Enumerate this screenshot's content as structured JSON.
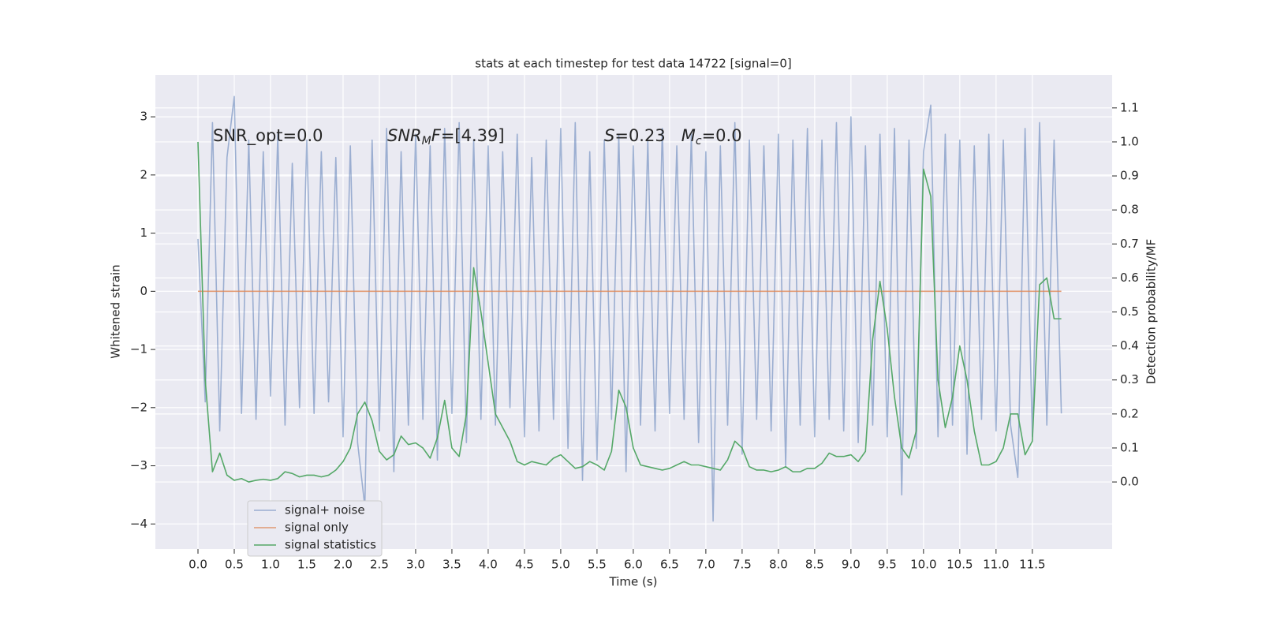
{
  "chart_data": {
    "type": "line",
    "title": "stats at each timestep for test data 14722 [signal=0]",
    "xlabel": "Time (s)",
    "ylabel": "Whitened strain",
    "y2label": "Detection probability/MF",
    "annotations": [
      {
        "parts": [
          {
            "text": "SNR_opt=0.0"
          }
        ]
      },
      {
        "parts": [
          {
            "text": "SNR",
            "italic": true
          },
          {
            "text": "M",
            "italic": true,
            "sub": true
          },
          {
            "text": "F",
            "italic": true
          },
          {
            "text": "=[4.39]"
          }
        ]
      },
      {
        "parts": [
          {
            "text": "S",
            "italic": true
          },
          {
            "text": "=0.23   "
          },
          {
            "text": "M",
            "italic": true
          },
          {
            "text": "c",
            "italic": true,
            "sub": true
          },
          {
            "text": "=0.0"
          }
        ]
      }
    ],
    "x": [
      0,
      0.1,
      0.2,
      0.3,
      0.4,
      0.5,
      0.6,
      0.7,
      0.8,
      0.9,
      1.0,
      1.1,
      1.2,
      1.3,
      1.4,
      1.5,
      1.6,
      1.7,
      1.8,
      1.9,
      2.0,
      2.1,
      2.2,
      2.3,
      2.4,
      2.5,
      2.6,
      2.7,
      2.8,
      2.9,
      3.0,
      3.1,
      3.2,
      3.3,
      3.4,
      3.5,
      3.6,
      3.7,
      3.8,
      3.9,
      4.0,
      4.1,
      4.2,
      4.3,
      4.4,
      4.5,
      4.6,
      4.7,
      4.8,
      4.9,
      5.0,
      5.1,
      5.2,
      5.3,
      5.4,
      5.5,
      5.6,
      5.7,
      5.8,
      5.9,
      6.0,
      6.1,
      6.2,
      6.3,
      6.4,
      6.5,
      6.6,
      6.7,
      6.8,
      6.9,
      7.0,
      7.1,
      7.2,
      7.3,
      7.4,
      7.5,
      7.6,
      7.7,
      7.8,
      7.9,
      8.0,
      8.1,
      8.2,
      8.3,
      8.4,
      8.5,
      8.6,
      8.7,
      8.8,
      8.9,
      9.0,
      9.1,
      9.2,
      9.3,
      9.4,
      9.5,
      9.6,
      9.7,
      9.8,
      9.9,
      10.0,
      10.1,
      10.2,
      10.3,
      10.4,
      10.5,
      10.6,
      10.7,
      10.8,
      10.9,
      11.0,
      11.1,
      11.2,
      11.3,
      11.4,
      11.5,
      11.6,
      11.7,
      11.8,
      11.9
    ],
    "series": [
      {
        "name": "signal+ noise",
        "color": "#4c72b0",
        "opacity": 0.5,
        "axis": "y",
        "values": [
          0.9,
          -1.9,
          2.9,
          -2.4,
          2.3,
          3.35,
          -2.1,
          2.6,
          -2.2,
          2.4,
          -1.8,
          2.7,
          -2.3,
          2.2,
          -2.0,
          2.6,
          -2.1,
          2.4,
          -1.9,
          2.3,
          -2.5,
          2.5,
          -2.6,
          -3.7,
          2.6,
          -2.4,
          2.8,
          -3.1,
          2.4,
          -2.3,
          2.7,
          -2.2,
          2.5,
          -2.9,
          2.8,
          -2.1,
          2.9,
          -2.6,
          2.6,
          -2.2,
          2.5,
          -2.3,
          2.4,
          -2.0,
          2.7,
          -2.5,
          2.3,
          -2.4,
          2.6,
          -2.2,
          2.8,
          -2.7,
          2.9,
          -3.25,
          2.4,
          -2.9,
          2.6,
          -2.2,
          2.7,
          -3.1,
          2.5,
          -2.3,
          2.6,
          -2.4,
          2.8,
          -2.1,
          2.5,
          -2.2,
          2.7,
          -2.6,
          2.4,
          -3.95,
          2.5,
          -2.3,
          2.9,
          -2.8,
          2.6,
          -2.2,
          2.5,
          -2.4,
          2.7,
          -3.0,
          2.6,
          -2.3,
          2.8,
          -2.5,
          2.6,
          -2.2,
          2.9,
          -2.4,
          3.0,
          -2.6,
          2.5,
          -2.3,
          2.7,
          -2.5,
          2.8,
          -3.5,
          2.6,
          -2.7,
          2.4,
          3.2,
          -2.5,
          2.7,
          -2.3,
          2.6,
          -2.8,
          2.5,
          -2.2,
          2.7,
          -2.4,
          2.6,
          -2.3,
          -3.2,
          2.8,
          -2.5,
          2.9,
          -2.3,
          2.6,
          -2.1
        ]
      },
      {
        "name": "signal only",
        "color": "#dd8452",
        "opacity": 0.8,
        "axis": "y",
        "values": [
          0,
          0,
          0,
          0,
          0,
          0,
          0,
          0,
          0,
          0,
          0,
          0,
          0,
          0,
          0,
          0,
          0,
          0,
          0,
          0,
          0,
          0,
          0,
          0,
          0,
          0,
          0,
          0,
          0,
          0,
          0,
          0,
          0,
          0,
          0,
          0,
          0,
          0,
          0,
          0,
          0,
          0,
          0,
          0,
          0,
          0,
          0,
          0,
          0,
          0,
          0,
          0,
          0,
          0,
          0,
          0,
          0,
          0,
          0,
          0,
          0,
          0,
          0,
          0,
          0,
          0,
          0,
          0,
          0,
          0,
          0,
          0,
          0,
          0,
          0,
          0,
          0,
          0,
          0,
          0,
          0,
          0,
          0,
          0,
          0,
          0,
          0,
          0,
          0,
          0,
          0,
          0,
          0,
          0,
          0,
          0,
          0,
          0,
          0,
          0,
          0,
          0,
          0,
          0,
          0,
          0,
          0,
          0,
          0,
          0,
          0,
          0,
          0,
          0,
          0,
          0,
          0,
          0,
          0,
          0
        ]
      },
      {
        "name": "signal statistics",
        "color": "#55a868",
        "opacity": 1,
        "axis": "y2",
        "values": [
          1.0,
          0.3,
          0.03,
          0.085,
          0.02,
          0.005,
          0.01,
          0.0,
          0.005,
          0.008,
          0.005,
          0.01,
          0.03,
          0.025,
          0.015,
          0.02,
          0.02,
          0.015,
          0.02,
          0.035,
          0.06,
          0.1,
          0.2,
          0.235,
          0.18,
          0.09,
          0.065,
          0.08,
          0.135,
          0.11,
          0.115,
          0.1,
          0.07,
          0.13,
          0.24,
          0.1,
          0.075,
          0.2,
          0.63,
          0.5,
          0.35,
          0.2,
          0.16,
          0.12,
          0.06,
          0.05,
          0.06,
          0.055,
          0.05,
          0.07,
          0.08,
          0.06,
          0.04,
          0.045,
          0.06,
          0.05,
          0.035,
          0.09,
          0.27,
          0.22,
          0.1,
          0.05,
          0.045,
          0.04,
          0.035,
          0.04,
          0.05,
          0.06,
          0.05,
          0.05,
          0.045,
          0.04,
          0.035,
          0.065,
          0.12,
          0.1,
          0.045,
          0.035,
          0.035,
          0.03,
          0.035,
          0.045,
          0.03,
          0.03,
          0.04,
          0.04,
          0.055,
          0.085,
          0.075,
          0.075,
          0.08,
          0.06,
          0.09,
          0.42,
          0.59,
          0.45,
          0.25,
          0.1,
          0.07,
          0.15,
          0.92,
          0.84,
          0.3,
          0.16,
          0.25,
          0.4,
          0.3,
          0.15,
          0.05,
          0.05,
          0.06,
          0.1,
          0.2,
          0.2,
          0.08,
          0.12,
          0.58,
          0.6,
          0.48,
          0.48
        ]
      }
    ],
    "xlim": [
      -0.587,
      12.6
    ],
    "xticks": [
      {
        "value": 0,
        "label": "0.0"
      },
      0.5,
      {
        "value": 1,
        "label": "1.0"
      },
      1.5,
      {
        "value": 2,
        "label": "2.0"
      },
      2.5,
      {
        "value": 3,
        "label": "3.0"
      },
      3.5,
      {
        "value": 4,
        "label": "4.0"
      },
      4.5,
      {
        "value": 5,
        "label": "5.0"
      },
      5.5,
      {
        "value": 6,
        "label": "6.0"
      },
      6.5,
      {
        "value": 7,
        "label": "7.0"
      },
      7.5,
      {
        "value": 8,
        "label": "8.0"
      },
      8.5,
      {
        "value": 9,
        "label": "9.0"
      },
      9.5,
      {
        "value": 10,
        "label": "10.0"
      },
      10.5,
      {
        "value": 11,
        "label": "11.0"
      },
      11.5
    ],
    "ylim": [
      -4.43,
      3.72
    ],
    "yticks": [
      {
        "value": -4,
        "label": "−4"
      },
      {
        "value": -3,
        "label": "−3"
      },
      {
        "value": -2,
        "label": "−2"
      },
      {
        "value": -1,
        "label": "−1"
      },
      0,
      1,
      2,
      3
    ],
    "y2lim": [
      -0.197,
      1.197
    ],
    "y2ticks": [
      {
        "value": 0,
        "label": "0.0"
      },
      0.1,
      0.2,
      0.3,
      0.4,
      0.5,
      0.6,
      0.7,
      0.8,
      0.9,
      {
        "value": 1,
        "label": "1.0"
      },
      1.1
    ],
    "grid": true,
    "legend": "lower left"
  }
}
